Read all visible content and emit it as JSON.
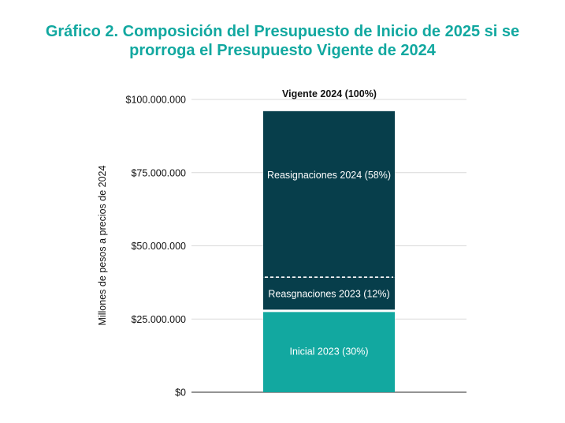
{
  "chart_data": {
    "type": "bar",
    "stacked": true,
    "title_lines": [
      "Gráfico 2. Composición del Presupuesto de Inicio de 2025 si se",
      "prorroga el Presupuesto Vigente de 2024"
    ],
    "ylabel": "Millones de pesos a precios de 2024",
    "xlabel": "",
    "ylim": [
      0,
      100000000
    ],
    "yticks": [
      {
        "value": 0,
        "label": "$0"
      },
      {
        "value": 25000000,
        "label": "$25.000.000"
      },
      {
        "value": 50000000,
        "label": "$50.000.000"
      },
      {
        "value": 75000000,
        "label": "$75.000.000"
      },
      {
        "value": 100000000,
        "label": "$100.000.000"
      }
    ],
    "grid": true,
    "categories": [
      "Vigente 2024 (100%)"
    ],
    "total_label": "Vigente 2024 (100%)",
    "segments": [
      {
        "name": "Inicial 2023 (30%)",
        "value": 27800000,
        "color": "#12a8a0"
      },
      {
        "name": "Reasgnaciones 2023 (12%)",
        "value": 11500000,
        "color": "#073e4b"
      },
      {
        "name": "Reasignaciones 2024 (58%)",
        "value": 56700000,
        "color": "#073e4b"
      }
    ],
    "divider_after_segment": 1,
    "gap_after_segment": 0
  }
}
